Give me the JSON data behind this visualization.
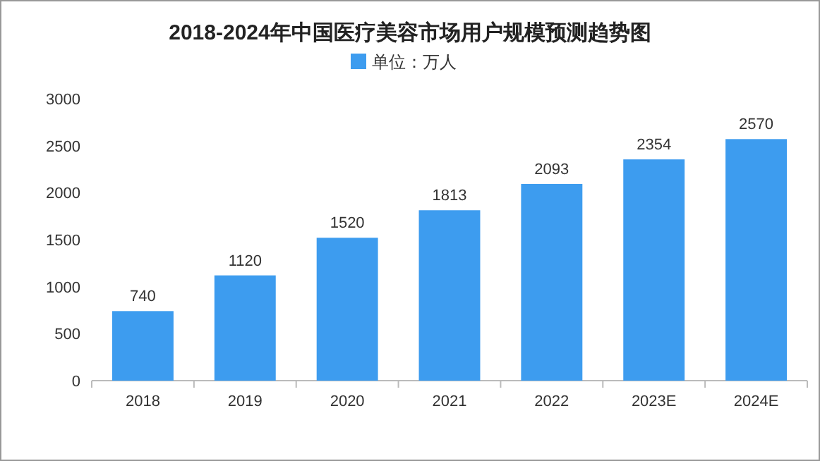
{
  "chart_data": {
    "type": "bar",
    "title": "2018-2024年中国医疗美容市场用户规模预测趋势图",
    "categories": [
      "2018",
      "2019",
      "2020",
      "2021",
      "2022",
      "2023E",
      "2024E"
    ],
    "series": [
      {
        "name": "单位：万人",
        "color": "#3d9cef",
        "values": [
          740,
          1120,
          1520,
          1813,
          2093,
          2354,
          2570
        ]
      }
    ],
    "ylim": [
      0,
      3000
    ],
    "yticks": [
      0,
      500,
      1000,
      1500,
      2000,
      2500,
      3000
    ],
    "data_labels": true,
    "legend": "top",
    "grid": false
  }
}
